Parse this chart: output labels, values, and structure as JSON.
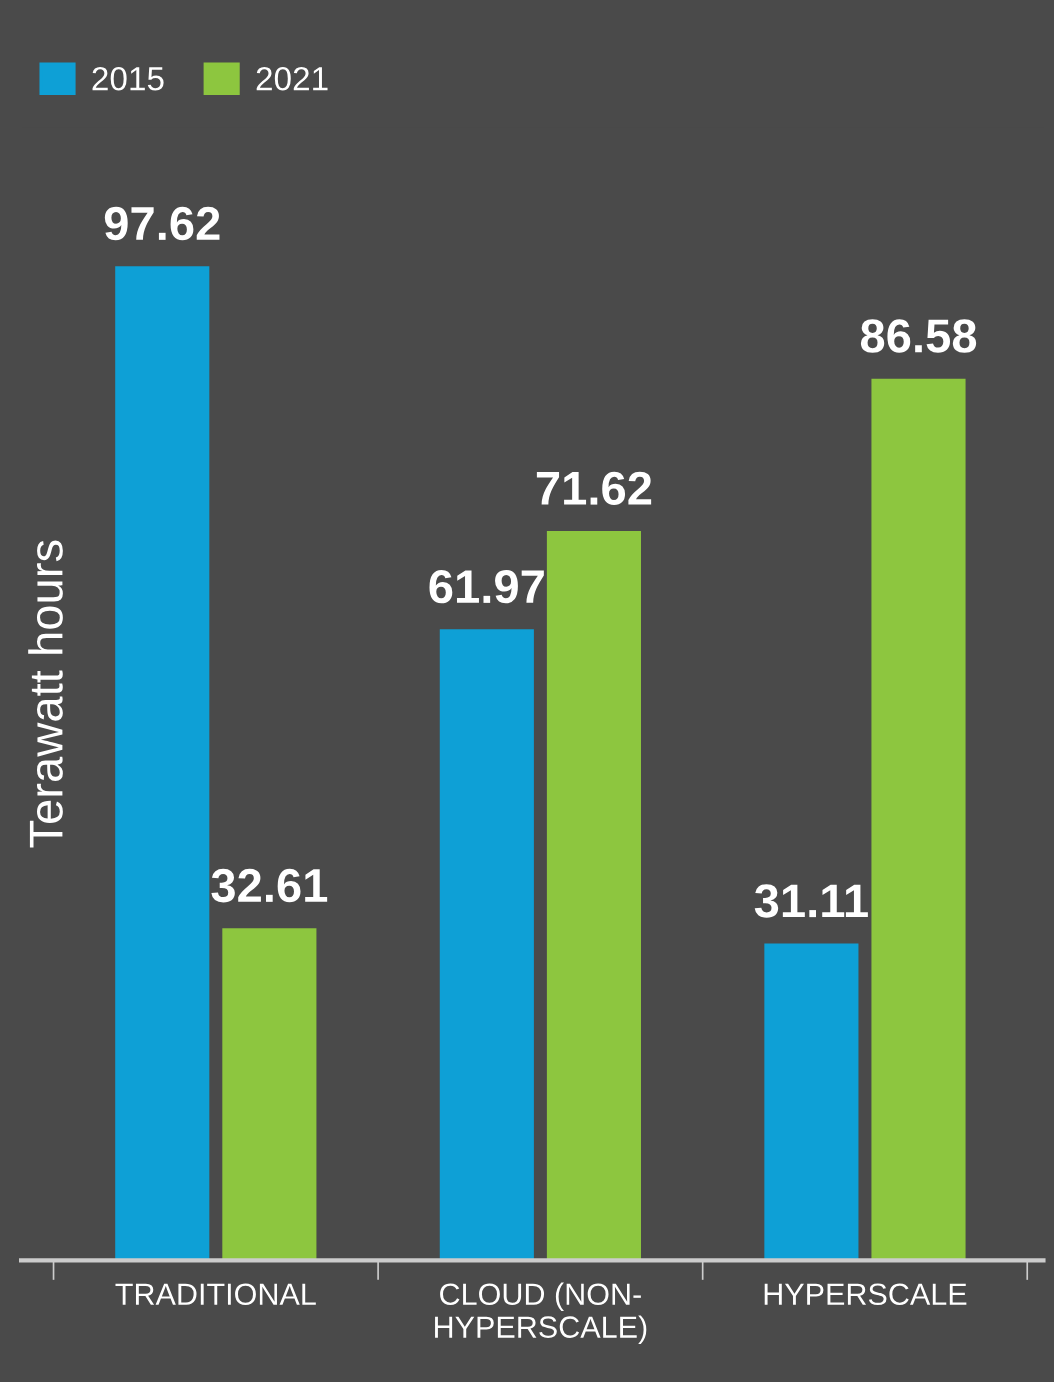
{
  "chart_data": {
    "type": "bar",
    "ylabel": "Terawatt hours",
    "categories": [
      "TRADITIONAL",
      "CLOUD (NON-\nHYPERSCALE)",
      "HYPERSCALE"
    ],
    "series": [
      {
        "name": "2015",
        "color": "#0ea0d6",
        "values": [
          97.62,
          61.97,
          31.11
        ]
      },
      {
        "name": "2021",
        "color": "#8dc63f",
        "values": [
          32.61,
          71.62,
          86.58
        ]
      }
    ],
    "data_labels": true,
    "legend": "top left",
    "grid": false
  }
}
